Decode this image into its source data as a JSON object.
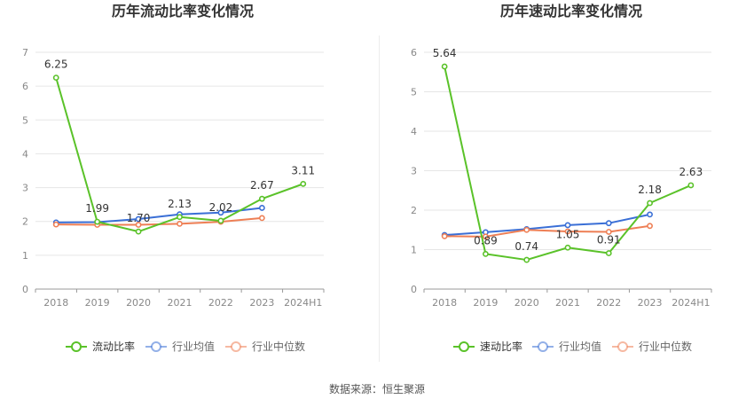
{
  "source_label": "数据来源：恒生聚源",
  "colors": {
    "company": "#5ac229",
    "industry_avg": "#3a6fd6",
    "industry_median": "#ee7f55"
  },
  "chart_data": [
    {
      "type": "line",
      "title": "历年流动比率变化情况",
      "categories": [
        "2018",
        "2019",
        "2020",
        "2021",
        "2022",
        "2023",
        "2024H1"
      ],
      "ylim": [
        0,
        7
      ],
      "yticks": [
        0,
        1,
        2,
        3,
        4,
        5,
        6,
        7
      ],
      "grid": true,
      "legend_position": "bottom",
      "series": [
        {
          "name": "流动比率",
          "color": "#5ac229",
          "values": [
            6.25,
            1.99,
            1.7,
            2.13,
            2.02,
            2.67,
            3.11
          ],
          "labels": [
            "6.25",
            "1.99",
            "1.70",
            "2.13",
            "2.02",
            "2.67",
            "3.11"
          ]
        },
        {
          "name": "行业均值",
          "color": "#3a6fd6",
          "values": [
            1.97,
            1.98,
            2.07,
            2.21,
            2.26,
            2.4,
            null
          ]
        },
        {
          "name": "行业中位数",
          "color": "#ee7f55",
          "values": [
            1.91,
            1.9,
            1.9,
            1.93,
            1.99,
            2.1,
            null
          ]
        }
      ]
    },
    {
      "type": "line",
      "title": "历年速动比率变化情况",
      "categories": [
        "2018",
        "2019",
        "2020",
        "2021",
        "2022",
        "2023",
        "2024H1"
      ],
      "ylim": [
        0,
        6
      ],
      "yticks": [
        0,
        1,
        2,
        3,
        4,
        5,
        6
      ],
      "grid": true,
      "legend_position": "bottom",
      "series": [
        {
          "name": "速动比率",
          "color": "#5ac229",
          "values": [
            5.64,
            0.89,
            0.74,
            1.05,
            0.91,
            2.18,
            2.63
          ],
          "labels": [
            "5.64",
            "0.89",
            "0.74",
            "1.05",
            "0.91",
            "2.18",
            "2.63"
          ]
        },
        {
          "name": "行业均值",
          "color": "#3a6fd6",
          "values": [
            1.37,
            1.44,
            1.52,
            1.62,
            1.67,
            1.89,
            null
          ]
        },
        {
          "name": "行业中位数",
          "color": "#ee7f55",
          "values": [
            1.34,
            1.33,
            1.5,
            1.46,
            1.45,
            1.6,
            null
          ]
        }
      ]
    }
  ]
}
